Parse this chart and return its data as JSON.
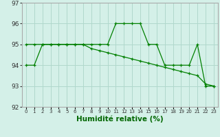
{
  "line1_x": [
    0,
    1,
    2,
    3,
    4,
    5,
    6,
    7,
    8,
    9,
    10,
    11,
    12,
    13,
    14,
    15,
    16,
    17,
    18,
    19,
    20,
    21,
    22,
    23
  ],
  "line1_y": [
    94,
    94,
    95,
    95,
    95,
    95,
    95,
    95,
    95,
    95,
    95,
    96,
    96,
    96,
    96,
    95,
    95,
    94,
    94,
    94,
    94,
    95,
    93,
    93
  ],
  "line2_x": [
    0,
    1,
    2,
    3,
    4,
    5,
    6,
    7,
    8,
    9,
    10,
    11,
    12,
    13,
    14,
    15,
    16,
    17,
    18,
    19,
    20,
    21,
    22,
    23
  ],
  "line2_y": [
    95,
    95,
    95,
    95,
    95,
    95,
    95,
    95,
    94.8,
    94.7,
    94.6,
    94.5,
    94.4,
    94.3,
    94.2,
    94.1,
    94.0,
    93.9,
    93.8,
    93.7,
    93.6,
    93.5,
    93.1,
    93.0
  ],
  "line_color": "#008000",
  "bg_color": "#d4f0e8",
  "grid_color": "#b0d8cc",
  "xlabel": "Humidité relative (%)",
  "ylabel_ticks": [
    92,
    93,
    94,
    95,
    96,
    97
  ],
  "xlim": [
    -0.5,
    23.5
  ],
  "ylim": [
    92,
    97
  ],
  "xlabel_color": "#006600"
}
